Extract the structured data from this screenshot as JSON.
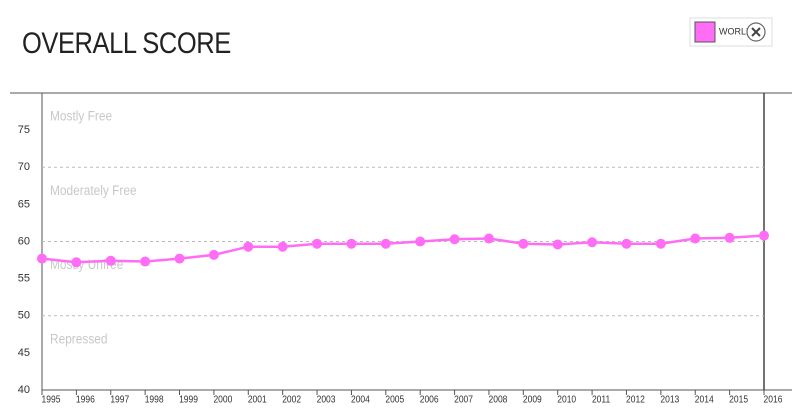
{
  "chart_data": {
    "type": "line",
    "title": "OVERALL SCORE",
    "x": [
      1995,
      1996,
      1997,
      1998,
      1999,
      2000,
      2001,
      2002,
      2003,
      2004,
      2005,
      2006,
      2007,
      2008,
      2009,
      2010,
      2011,
      2012,
      2013,
      2014,
      2015,
      2016
    ],
    "series": [
      {
        "name": "WORLD",
        "color": "#ff6cf5",
        "values": [
          57.7,
          57.2,
          57.4,
          57.3,
          57.7,
          58.2,
          59.3,
          59.3,
          59.7,
          59.7,
          59.7,
          60.0,
          60.3,
          60.4,
          59.7,
          59.6,
          59.9,
          59.7,
          59.7,
          60.4,
          60.5,
          60.8
        ]
      }
    ],
    "xlim": [
      1995,
      2016
    ],
    "xticks": [
      1995,
      1996,
      1997,
      1998,
      1999,
      2000,
      2001,
      2002,
      2003,
      2004,
      2005,
      2006,
      2007,
      2008,
      2009,
      2010,
      2011,
      2012,
      2013,
      2014,
      2015,
      2016
    ],
    "ylim": [
      40,
      80
    ],
    "yticks": [
      40,
      45,
      50,
      55,
      60,
      65,
      70,
      75
    ],
    "zones": [
      {
        "label": "Repressed",
        "from": 40,
        "to": 50
      },
      {
        "label": "Mostly Unfree",
        "from": 50,
        "to": 60
      },
      {
        "label": "Moderately Free",
        "from": 60,
        "to": 70
      },
      {
        "label": "Mostly Free",
        "from": 70,
        "to": 80
      }
    ],
    "legend": "top-right"
  }
}
